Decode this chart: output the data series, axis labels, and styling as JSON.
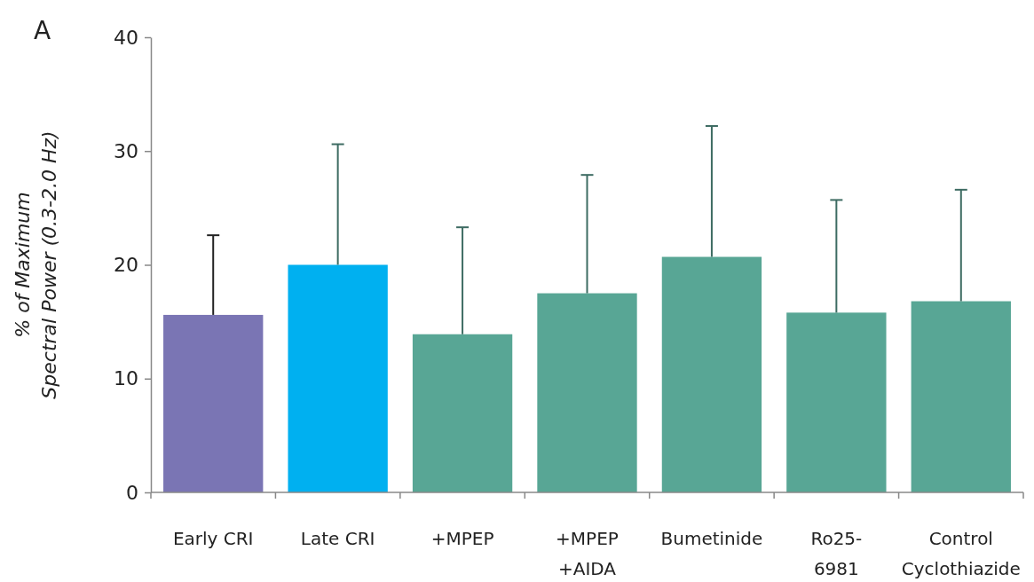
{
  "chart_data": {
    "type": "bar",
    "ylabel": "% of Maximum\nSpectral Power (0.3-2.0 Hz)",
    "annotations": [
      "A"
    ],
    "categories": [
      "Early CRI",
      "Late CRI",
      "+MPEP",
      "+MPEP\n+AIDA",
      "Bumetinide",
      "Ro25-\n6981",
      "Control\nCyclothiazide"
    ],
    "values": [
      15.6,
      20.0,
      13.9,
      17.5,
      20.7,
      15.8,
      16.8
    ],
    "errors": [
      [
        15.6,
        22.6
      ],
      [
        20.0,
        30.6
      ],
      [
        13.9,
        23.3
      ],
      [
        17.5,
        27.9
      ],
      [
        20.7,
        32.2
      ],
      [
        15.8,
        25.7
      ],
      [
        16.8,
        26.6
      ]
    ],
    "colors": [
      "#7a75b4",
      "#00b0f0",
      "#58a695",
      "#58a695",
      "#58a695",
      "#58a695",
      "#58a695"
    ],
    "ylim": [
      0,
      40
    ],
    "yticks": [
      0,
      10,
      20,
      30,
      40
    ],
    "grid": false
  }
}
